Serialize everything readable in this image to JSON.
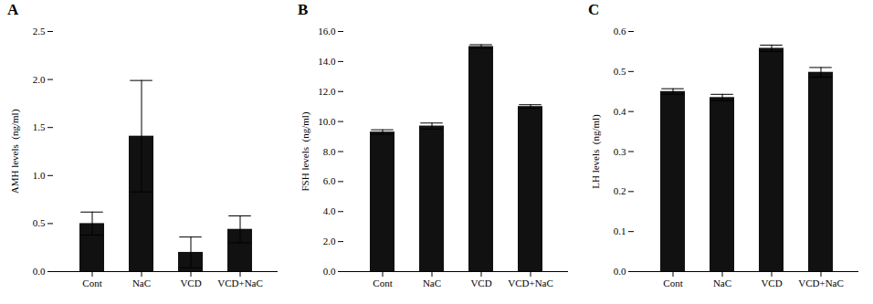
{
  "chart_data": [
    {
      "type": "bar",
      "title": "A",
      "ylabel": "AMH levels  (ng/ml)",
      "categories": [
        "Cont",
        "NaC",
        "VCD",
        "VCD+NaC"
      ],
      "values": [
        0.5,
        1.41,
        0.2,
        0.44
      ],
      "errors": [
        0.12,
        0.58,
        0.16,
        0.14
      ],
      "color": "#111111",
      "ylim": [
        0,
        2.5
      ],
      "yticks": [
        {
          "value": 0.0,
          "label": "0.0"
        },
        0.5,
        {
          "value": 1.0,
          "label": "1.0"
        },
        1.5,
        {
          "value": 2.0,
          "label": "2.0"
        },
        2.5
      ],
      "grid": false
    },
    {
      "type": "bar",
      "title": "B",
      "ylabel": "FSH levels  (ng/ml)",
      "categories": [
        "Cont",
        "NaC",
        "VCD",
        "VCD+NaC"
      ],
      "values": [
        9.3,
        9.7,
        15.0,
        11.0
      ],
      "errors": [
        0.15,
        0.2,
        0.12,
        0.12
      ],
      "color": "#111111",
      "ylim": [
        0,
        16.0
      ],
      "yticks": [
        {
          "value": 0.0,
          "label": "0.0"
        },
        {
          "value": 2.0,
          "label": "2.0"
        },
        {
          "value": 4.0,
          "label": "4.0"
        },
        {
          "value": 6.0,
          "label": "6.0"
        },
        {
          "value": 8.0,
          "label": "8.0"
        },
        {
          "value": 10.0,
          "label": "10.0"
        },
        {
          "value": 12.0,
          "label": "12.0"
        },
        {
          "value": 14.0,
          "label": "14.0"
        },
        {
          "value": 16.0,
          "label": "16.0"
        }
      ],
      "grid": false
    },
    {
      "type": "bar",
      "title": "C",
      "ylabel": "LH levels  (ng/ml)",
      "categories": [
        "Cont",
        "NaC",
        "VCD",
        "VCD+NaC"
      ],
      "values": [
        0.45,
        0.435,
        0.558,
        0.498
      ],
      "errors": [
        0.007,
        0.008,
        0.008,
        0.012
      ],
      "color": "#111111",
      "ylim": [
        0,
        0.6
      ],
      "yticks": [
        {
          "value": 0.0,
          "label": "0.0"
        },
        0.1,
        0.2,
        0.3,
        0.4,
        0.5,
        0.6
      ],
      "grid": false
    }
  ]
}
